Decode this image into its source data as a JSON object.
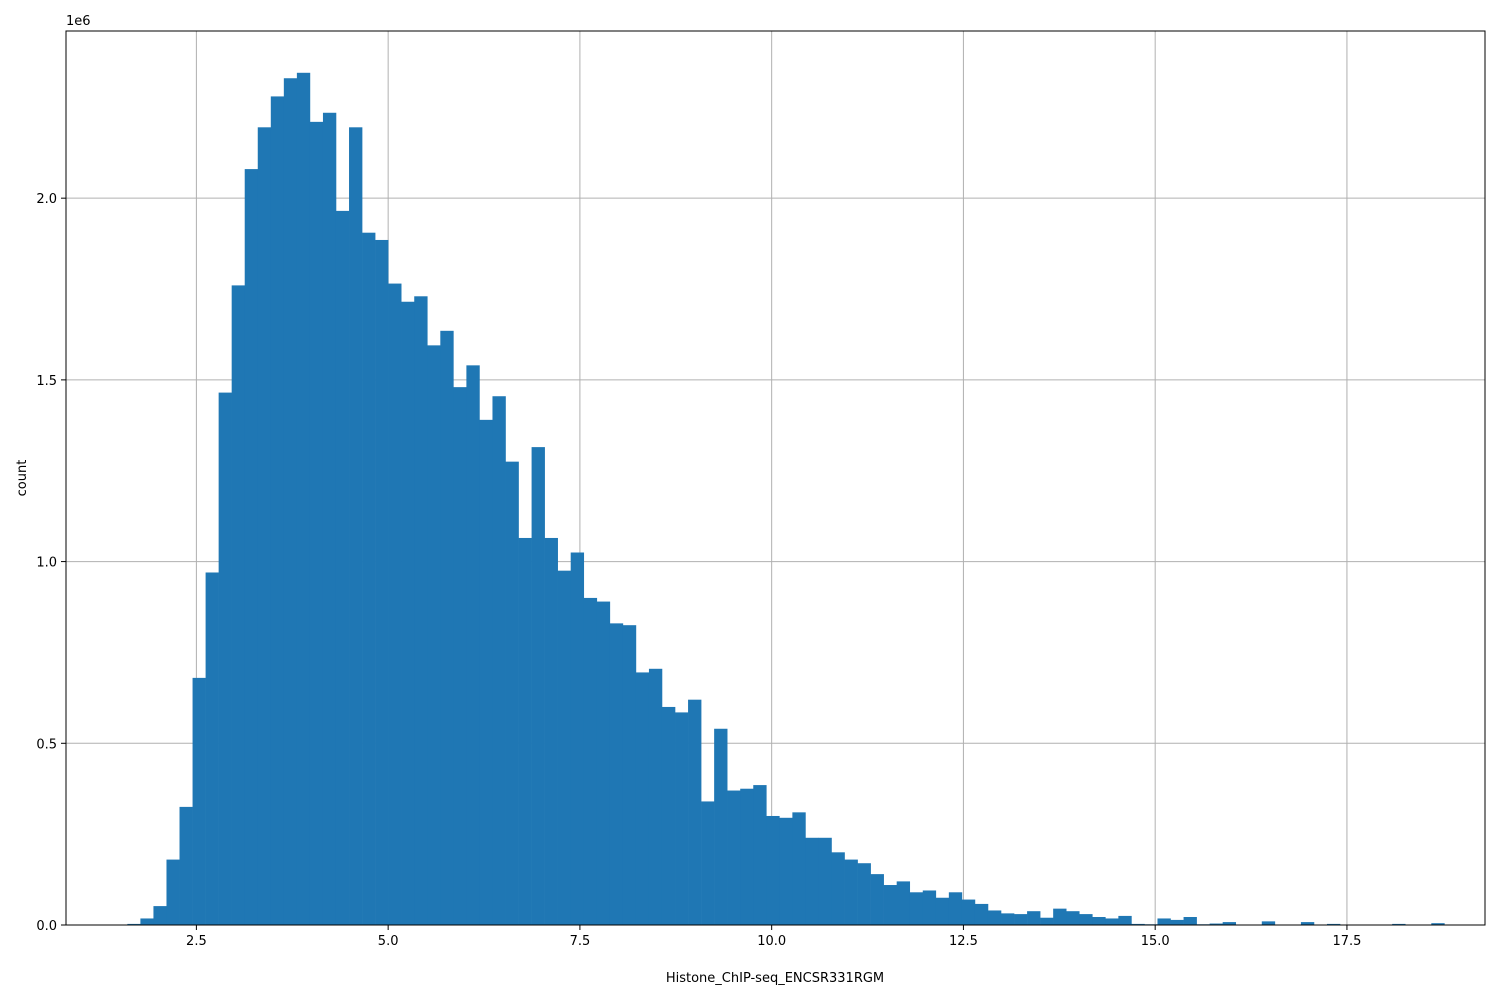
{
  "chart_data": {
    "type": "bar",
    "title": "",
    "xlabel": "Histone_ChIP-seq_ENCSR331RGM",
    "ylabel": "count",
    "y_offset_label": "1e6",
    "xlim": [
      0.8,
      19.3
    ],
    "ylim": [
      0,
      2.46
    ],
    "grid": true,
    "bar_color": "#1f77b4",
    "x_ticks": [
      {
        "value": 2.5,
        "label": "2.5"
      },
      {
        "value": 5.0,
        "label": "5.0"
      },
      {
        "value": 7.5,
        "label": "7.5"
      },
      {
        "value": 10.0,
        "label": "10.0"
      },
      {
        "value": 12.5,
        "label": "12.5"
      },
      {
        "value": 15.0,
        "label": "15.0"
      },
      {
        "value": 17.5,
        "label": "17.5"
      }
    ],
    "y_ticks": [
      {
        "value": 0.0,
        "label": "0.0"
      },
      {
        "value": 0.5,
        "label": "0.5"
      },
      {
        "value": 1.0,
        "label": "1.0"
      },
      {
        "value": 1.5,
        "label": "1.5"
      },
      {
        "value": 2.0,
        "label": "2.0"
      }
    ],
    "bin_start": 1.6,
    "bin_width": 0.17,
    "values": [
      0.003,
      0.018,
      0.052,
      0.18,
      0.325,
      0.68,
      0.97,
      1.465,
      1.76,
      2.08,
      2.195,
      2.28,
      2.33,
      2.345,
      2.21,
      2.235,
      1.965,
      2.195,
      1.905,
      1.885,
      1.765,
      1.715,
      1.73,
      1.595,
      1.635,
      1.48,
      1.54,
      1.39,
      1.455,
      1.275,
      1.065,
      1.315,
      1.065,
      0.975,
      1.025,
      0.9,
      0.89,
      0.83,
      0.825,
      0.695,
      0.705,
      0.6,
      0.585,
      0.62,
      0.34,
      0.54,
      0.37,
      0.375,
      0.385,
      0.3,
      0.295,
      0.31,
      0.24,
      0.24,
      0.2,
      0.18,
      0.17,
      0.14,
      0.11,
      0.12,
      0.09,
      0.095,
      0.075,
      0.09,
      0.07,
      0.058,
      0.04,
      0.032,
      0.03,
      0.038,
      0.02,
      0.045,
      0.038,
      0.03,
      0.022,
      0.018,
      0.025,
      0.003,
      0.002,
      0.018,
      0.014,
      0.022,
      0.002,
      0.004,
      0.008,
      0.0,
      0.0,
      0.01,
      0.0,
      0.0,
      0.008,
      0.0,
      0.003,
      0.0,
      0.0,
      0.0,
      0.0,
      0.003,
      0.0,
      0.0,
      0.005
    ]
  }
}
